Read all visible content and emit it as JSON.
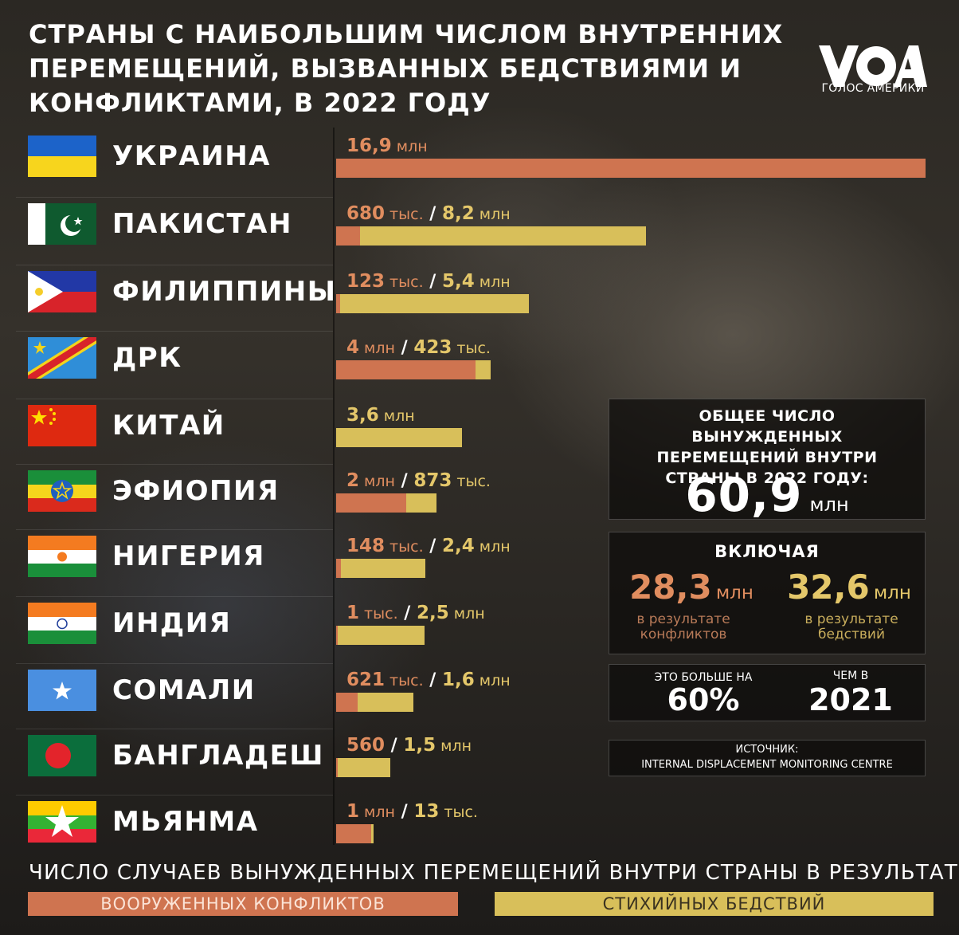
{
  "title": "СТРАНЫ С НАИБОЛЬШИМ ЧИСЛОМ ВНУТРЕННИХ ПЕРЕМЕЩЕНИЙ, ВЫЗВАННЫХ БЕДСТВИЯМИ И КОНФЛИКТАМИ, В 2022 ГОДУ",
  "logo": {
    "name": "voa-logo-icon",
    "text": "ГОЛОС АМЕРИКИ"
  },
  "colors": {
    "conflict": "#cf7450",
    "disaster": "#d8bf5a",
    "conflict_text": "#e08d5f",
    "disaster_text": "#e4c76a"
  },
  "rows": [
    {
      "country": "УКРАИНА",
      "flag": "ukraine-flag-icon",
      "label": [
        {
          "t": "16,9",
          "cls": "num c-conf"
        },
        {
          "t": " млн",
          "cls": "unit c-conf"
        }
      ]
    },
    {
      "country": "ПАКИСТАН",
      "flag": "pakistan-flag-icon",
      "label": [
        {
          "t": "680",
          "cls": "num c-conf"
        },
        {
          "t": " тыс.",
          "cls": "unit c-conf"
        },
        {
          "t": " / ",
          "cls": "sep"
        },
        {
          "t": "8,2",
          "cls": "num c-dis"
        },
        {
          "t": " млн",
          "cls": "unit c-dis"
        }
      ]
    },
    {
      "country": "ФИЛИППИНЫ",
      "flag": "philippines-flag-icon",
      "label": [
        {
          "t": "123",
          "cls": "num c-conf"
        },
        {
          "t": " тыс.",
          "cls": "unit c-conf"
        },
        {
          "t": " / ",
          "cls": "sep"
        },
        {
          "t": "5,4",
          "cls": "num c-dis"
        },
        {
          "t": " млн",
          "cls": "unit c-dis"
        }
      ]
    },
    {
      "country": "ДРК",
      "flag": "drc-flag-icon",
      "label": [
        {
          "t": "4",
          "cls": "num c-conf"
        },
        {
          "t": " млн",
          "cls": "unit c-conf"
        },
        {
          "t": " / ",
          "cls": "sep"
        },
        {
          "t": "423",
          "cls": "num c-dis"
        },
        {
          "t": " тыс.",
          "cls": "unit c-dis"
        }
      ]
    },
    {
      "country": "КИТАЙ",
      "flag": "china-flag-icon",
      "label": [
        {
          "t": "3,6",
          "cls": "num c-dis"
        },
        {
          "t": " млн",
          "cls": "unit c-dis"
        }
      ]
    },
    {
      "country": "ЭФИОПИЯ",
      "flag": "ethiopia-flag-icon",
      "label": [
        {
          "t": "2",
          "cls": "num c-conf"
        },
        {
          "t": " млн",
          "cls": "unit c-conf"
        },
        {
          "t": " / ",
          "cls": "sep"
        },
        {
          "t": "873",
          "cls": "num c-dis"
        },
        {
          "t": " тыс.",
          "cls": "unit c-dis"
        }
      ]
    },
    {
      "country": "НИГЕРИЯ",
      "flag": "nigeria-flag-icon",
      "label": [
        {
          "t": "148",
          "cls": "num c-conf"
        },
        {
          "t": " тыс.",
          "cls": "unit c-conf"
        },
        {
          "t": " / ",
          "cls": "sep"
        },
        {
          "t": "2,4",
          "cls": "num c-dis"
        },
        {
          "t": " млн",
          "cls": "unit c-dis"
        }
      ]
    },
    {
      "country": "ИНДИЯ",
      "flag": "india-flag-icon",
      "label": [
        {
          "t": "1",
          "cls": "num c-conf"
        },
        {
          "t": " тыс.",
          "cls": "unit c-conf"
        },
        {
          "t": " / ",
          "cls": "sep"
        },
        {
          "t": "2,5",
          "cls": "num c-dis"
        },
        {
          "t": " млн",
          "cls": "unit c-dis"
        }
      ]
    },
    {
      "country": "СОМАЛИ",
      "flag": "somalia-flag-icon",
      "label": [
        {
          "t": "621",
          "cls": "num c-conf"
        },
        {
          "t": " тыс.",
          "cls": "unit c-conf"
        },
        {
          "t": " / ",
          "cls": "sep"
        },
        {
          "t": "1,6",
          "cls": "num c-dis"
        },
        {
          "t": " млн",
          "cls": "unit c-dis"
        }
      ]
    },
    {
      "country": "БАНГЛАДЕШ",
      "flag": "bangladesh-flag-icon",
      "label": [
        {
          "t": "560",
          "cls": "num c-conf"
        },
        {
          "t": " / ",
          "cls": "sep"
        },
        {
          "t": "1,5",
          "cls": "num c-dis"
        },
        {
          "t": " млн",
          "cls": "unit c-dis"
        }
      ]
    },
    {
      "country": "МЬЯНМА",
      "flag": "myanmar-flag-icon",
      "label": [
        {
          "t": "1",
          "cls": "num c-conf"
        },
        {
          "t": " млн",
          "cls": "unit c-conf"
        },
        {
          "t": " / ",
          "cls": "sep"
        },
        {
          "t": "13",
          "cls": "num c-dis"
        },
        {
          "t": " тыс.",
          "cls": "unit c-dis"
        }
      ]
    }
  ],
  "chart_data": {
    "type": "bar",
    "stacked": true,
    "categories": [
      "УКРАИНА",
      "ПАКИСТАН",
      "ФИЛИППИНЫ",
      "ДРК",
      "КИТАЙ",
      "ЭФИОПИЯ",
      "НИГЕРИЯ",
      "ИНДИЯ",
      "СОМАЛИ",
      "БАНГЛАДЕШ",
      "МЬЯНМА"
    ],
    "unit": "млн",
    "series": [
      {
        "name": "ВООРУЖЕННЫХ КОНФЛИКТОВ",
        "color": "#cf7450",
        "values": [
          16.9,
          0.68,
          0.123,
          4.0,
          0,
          2.0,
          0.148,
          0.001,
          0.621,
          0.00056,
          1.0
        ]
      },
      {
        "name": "СТИХИЙНЫХ БЕДСТВИЙ",
        "color": "#d8bf5a",
        "values": [
          0,
          8.2,
          5.4,
          0.423,
          3.6,
          0.873,
          2.4,
          2.5,
          1.6,
          1.5,
          0.013
        ]
      }
    ],
    "xlim": [
      0,
      16.9
    ]
  },
  "total_panel": {
    "heading": "ОБЩЕЕ ЧИСЛО ВЫНУЖДЕННЫХ ПЕРЕМЕЩЕНИЙ ВНУТРИ СТРАНЫ В 2022 ГОДУ:",
    "value": "60,9",
    "unit": "млн"
  },
  "including_panel": {
    "heading": "ВКЛЮЧАЯ",
    "conflict_value": "28,3",
    "conflict_unit": "млн",
    "conflict_caption": "в результате конфликтов",
    "disaster_value": "32,6",
    "disaster_unit": "млн",
    "disaster_caption": "в результате бедствий"
  },
  "compare_panel": {
    "left_label": "ЭТО БОЛЬШЕ НА",
    "left_value": "60%",
    "right_label": "ЧЕМ В",
    "right_value": "2021"
  },
  "source_panel": {
    "label": "ИСТОЧНИК:",
    "value": "INTERNAL DISPLACEMENT MONITORING CENTRE"
  },
  "footer": {
    "title": "ЧИСЛО СЛУЧАЕВ ВЫНУЖДЕННЫХ ПЕРЕМЕЩЕНИЙ ВНУТРИ СТРАНЫ В РЕЗУЛЬТАТЕ",
    "legend_conflict": "ВООРУЖЕННЫХ КОНФЛИКТОВ",
    "legend_disaster": "СТИХИЙНЫХ БЕДСТВИЙ"
  }
}
